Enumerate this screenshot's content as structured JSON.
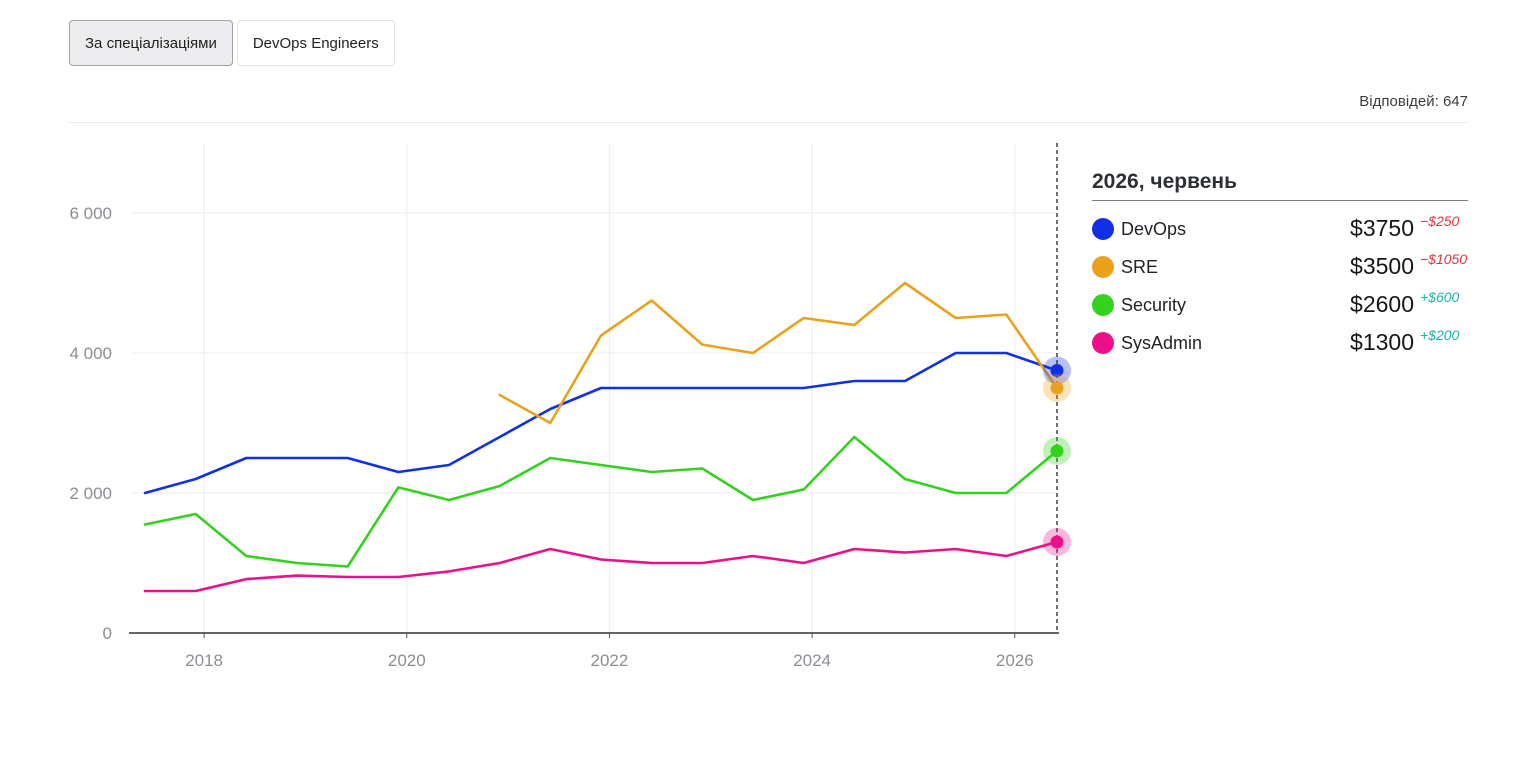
{
  "filters": {
    "by_specialization_label": "За спеціалізаціями",
    "devops_engineers_label": "DevOps Engineers"
  },
  "responses_text": "Відповідей: 647",
  "tooltip": {
    "title": "2026, червень",
    "rows": [
      {
        "name": "DevOps",
        "value": "$3750",
        "delta": "−$250",
        "delta_sign": "negative",
        "color": "#1130e6"
      },
      {
        "name": "SRE",
        "value": "$3500",
        "delta": "−$1050",
        "delta_sign": "negative",
        "color": "#eaa21c"
      },
      {
        "name": "Security",
        "value": "$2600",
        "delta": "+$600",
        "delta_sign": "positive",
        "color": "#33d21e"
      },
      {
        "name": "SysAdmin",
        "value": "$1300",
        "delta": "+$200",
        "delta_sign": "positive",
        "color": "#ec0f8a"
      }
    ]
  },
  "chart_data": {
    "type": "line",
    "title": "",
    "xlabel": "",
    "ylabel": "",
    "x_ticks": [
      "2018",
      "2020",
      "2022",
      "2024",
      "2026"
    ],
    "y_ticks": [
      "0",
      "2 000",
      "4 000",
      "6 000"
    ],
    "ylim": [
      0,
      7000
    ],
    "xlim": [
      "2017-06",
      "2026-06"
    ],
    "grid": true,
    "highlighted_x": "2026-06",
    "series": [
      {
        "name": "DevOps",
        "color": "#1130e6",
        "points": [
          [
            "2017-06",
            2000
          ],
          [
            "2017-12",
            2200
          ],
          [
            "2018-06",
            2500
          ],
          [
            "2018-12",
            2500
          ],
          [
            "2019-06",
            2500
          ],
          [
            "2019-12",
            2300
          ],
          [
            "2020-06",
            2400
          ],
          [
            "2020-12",
            2800
          ],
          [
            "2021-06",
            3200
          ],
          [
            "2021-12",
            3500
          ],
          [
            "2022-06",
            3500
          ],
          [
            "2022-12",
            3500
          ],
          [
            "2023-06",
            3500
          ],
          [
            "2023-12",
            3500
          ],
          [
            "2024-06",
            3600
          ],
          [
            "2024-12",
            3600
          ],
          [
            "2025-06",
            4000
          ],
          [
            "2025-12",
            4000
          ],
          [
            "2026-06",
            3750
          ]
        ]
      },
      {
        "name": "SRE",
        "color": "#eaa21c",
        "points": [
          [
            "2020-12",
            3400
          ],
          [
            "2021-06",
            3000
          ],
          [
            "2021-12",
            4250
          ],
          [
            "2022-06",
            4750
          ],
          [
            "2022-12",
            4120
          ],
          [
            "2023-06",
            4000
          ],
          [
            "2023-12",
            4500
          ],
          [
            "2024-06",
            4400
          ],
          [
            "2024-12",
            5000
          ],
          [
            "2025-06",
            4500
          ],
          [
            "2025-12",
            4550
          ],
          [
            "2026-06",
            3500
          ]
        ]
      },
      {
        "name": "Security",
        "color": "#33d21e",
        "points": [
          [
            "2017-06",
            1550
          ],
          [
            "2017-12",
            1700
          ],
          [
            "2018-06",
            1100
          ],
          [
            "2018-12",
            1000
          ],
          [
            "2019-06",
            950
          ],
          [
            "2019-12",
            2080
          ],
          [
            "2020-06",
            1900
          ],
          [
            "2020-12",
            2100
          ],
          [
            "2021-06",
            2500
          ],
          [
            "2021-12",
            2400
          ],
          [
            "2022-06",
            2300
          ],
          [
            "2022-12",
            2350
          ],
          [
            "2023-06",
            1900
          ],
          [
            "2023-12",
            2050
          ],
          [
            "2024-06",
            2800
          ],
          [
            "2024-12",
            2200
          ],
          [
            "2025-06",
            2000
          ],
          [
            "2025-12",
            2000
          ],
          [
            "2026-06",
            2600
          ]
        ]
      },
      {
        "name": "SysAdmin",
        "color": "#ec0f8a",
        "points": [
          [
            "2017-06",
            600
          ],
          [
            "2017-12",
            600
          ],
          [
            "2018-06",
            770
          ],
          [
            "2018-12",
            820
          ],
          [
            "2019-06",
            800
          ],
          [
            "2019-12",
            800
          ],
          [
            "2020-06",
            880
          ],
          [
            "2020-12",
            1000
          ],
          [
            "2021-06",
            1200
          ],
          [
            "2021-12",
            1050
          ],
          [
            "2022-06",
            1000
          ],
          [
            "2022-12",
            1000
          ],
          [
            "2023-06",
            1100
          ],
          [
            "2023-12",
            1000
          ],
          [
            "2024-06",
            1200
          ],
          [
            "2024-12",
            1150
          ],
          [
            "2025-06",
            1200
          ],
          [
            "2025-12",
            1100
          ],
          [
            "2026-06",
            1300
          ]
        ]
      }
    ]
  }
}
